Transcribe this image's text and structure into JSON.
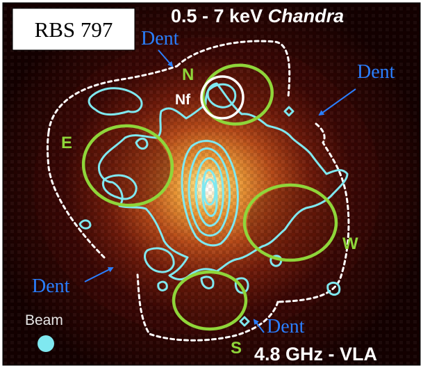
{
  "title_box": {
    "text": "RBS 797"
  },
  "xray_band": {
    "prefix": "0.5 - 7 keV ",
    "instrument": "Chandra"
  },
  "radio_band": {
    "text": "4.8 GHz - VLA"
  },
  "beam_label": "Beam",
  "cavity_labels": {
    "north": "N",
    "north_filament": "Nf",
    "east": "E",
    "west": "W",
    "south": "S"
  },
  "dent_label": "Dent",
  "colors": {
    "dent_text": "#2a7fff",
    "contour": "#7fe8f0",
    "cavity": "#8fd63a",
    "cavity_label": "#8fd63a",
    "beam": "#7fe8f0",
    "title_box_fill": "#ffffff",
    "background_dark": "#1a0000"
  }
}
